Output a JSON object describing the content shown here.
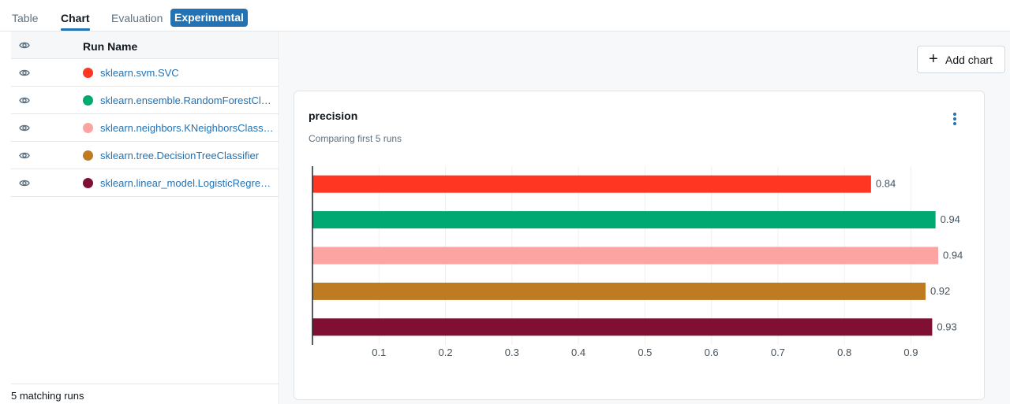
{
  "tabs": [
    {
      "label": "Table"
    },
    {
      "label": "Chart"
    },
    {
      "label": "Evaluation"
    },
    {
      "label": "Experimental"
    }
  ],
  "runs_table": {
    "header": "Run Name",
    "rows": [
      {
        "name": "sklearn.svm.SVC",
        "color": "#ff3621"
      },
      {
        "name": "sklearn.ensemble.RandomForestClassifier",
        "color": "#00a972"
      },
      {
        "name": "sklearn.neighbors.KNeighborsClassifier",
        "color": "#fca4a1"
      },
      {
        "name": "sklearn.tree.DecisionTreeClassifier",
        "color": "#be7b22"
      },
      {
        "name": "sklearn.linear_model.LogisticRegression",
        "color": "#801033"
      }
    ],
    "footer": "5 matching runs"
  },
  "toolbar": {
    "add_chart_label": "Add chart"
  },
  "card": {
    "title": "precision",
    "subtitle": "Comparing first 5 runs"
  },
  "chart_data": {
    "type": "bar",
    "orientation": "horizontal",
    "title": "precision",
    "subtitle": "Comparing first 5 runs",
    "categories": [
      "sklearn.svm.SVC",
      "sklearn.ensemble.RandomForestClassifier",
      "sklearn.neighbors.KNeighborsClassifier",
      "sklearn.tree.DecisionTreeClassifier",
      "sklearn.linear_model.LogisticRegression"
    ],
    "values": [
      0.84,
      0.937,
      0.941,
      0.922,
      0.932
    ],
    "value_labels": [
      "0.84",
      "0.94",
      "0.94",
      "0.92",
      "0.93"
    ],
    "colors": [
      "#ff3621",
      "#00a972",
      "#fca4a1",
      "#be7b22",
      "#801033"
    ],
    "xlim": [
      0,
      0.96
    ],
    "xticks": [
      0.1,
      0.2,
      0.3,
      0.4,
      0.5,
      0.6,
      0.7,
      0.8,
      0.9
    ],
    "xtick_labels": [
      "0.1",
      "0.2",
      "0.3",
      "0.4",
      "0.5",
      "0.6",
      "0.7",
      "0.8",
      "0.9"
    ],
    "grid": true,
    "legend": "none"
  }
}
